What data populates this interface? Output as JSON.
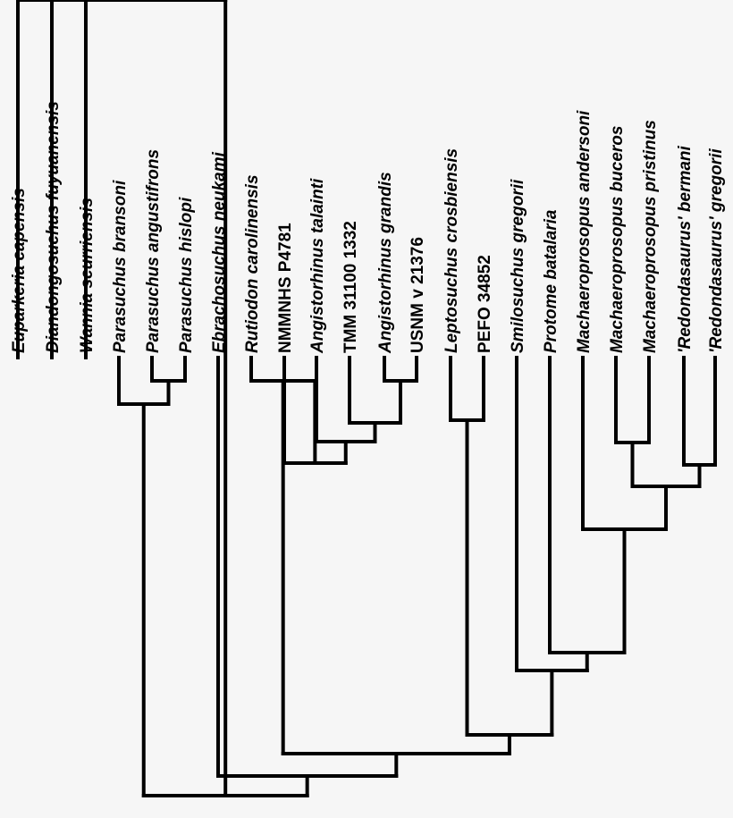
{
  "tree": {
    "taxa": [
      {
        "label": "Euparkeria capensis",
        "italic": true
      },
      {
        "label": "Diandongosuchus fuyuanensis",
        "italic": true
      },
      {
        "label": "Wannia scurriensis",
        "italic": true
      },
      {
        "label": "Parasuchus bransoni",
        "italic": true
      },
      {
        "label": "Parasuchus angustifrons",
        "italic": true
      },
      {
        "label": "Parasuchus hislopi",
        "italic": true
      },
      {
        "label": "Ebrachosuchus neukami",
        "italic": true
      },
      {
        "label": "Rutiodon carolinensis",
        "italic": true
      },
      {
        "label": "NMMNHS P4781",
        "italic": false
      },
      {
        "label": "Angistorhinus talainti",
        "italic": true
      },
      {
        "label": "TMM 31100 1332",
        "italic": false
      },
      {
        "label": "Angistorhinus grandis",
        "italic": true
      },
      {
        "label": "USNM v 21376",
        "italic": false
      },
      {
        "label": "Leptosuchus crosbiensis",
        "italic": true
      },
      {
        "label": "PEFO 34852",
        "italic": false
      },
      {
        "label": "Smilosuchus gregorii",
        "italic": true
      },
      {
        "label": "Protome batalaria",
        "italic": true
      },
      {
        "label": "Machaeroprosopus andersoni",
        "italic": true
      },
      {
        "label": "Machaeroprosopus buceros",
        "italic": true
      },
      {
        "label": "Machaeroprosopus pristinus",
        "italic": true
      },
      {
        "label": "'Redondasaurus' bermani",
        "italic": true
      },
      {
        "label": "'Redondasaurus' gregorii",
        "italic": true
      }
    ],
    "topology": [
      0,
      [
        1,
        [
          2,
          [
            [
              3,
              [
                4,
                5
              ]
            ],
            [
              6,
              [
                [
                  7,
                  [
                    8,
                    [
                      9,
                      [
                        10,
                        [
                          11,
                          12
                        ]
                      ]
                    ]
                  ]
                ],
                [
                  [
                    13,
                    14
                  ],
                  [
                    15,
                    [
                      16,
                      [
                        17,
                        [
                          [
                            18,
                            19
                          ],
                          [
                            20,
                            21
                          ]
                        ]
                      ]
                    ]
                  ]
                ]
              ]
            ]
          ]
        ]
      ]
    ]
  }
}
